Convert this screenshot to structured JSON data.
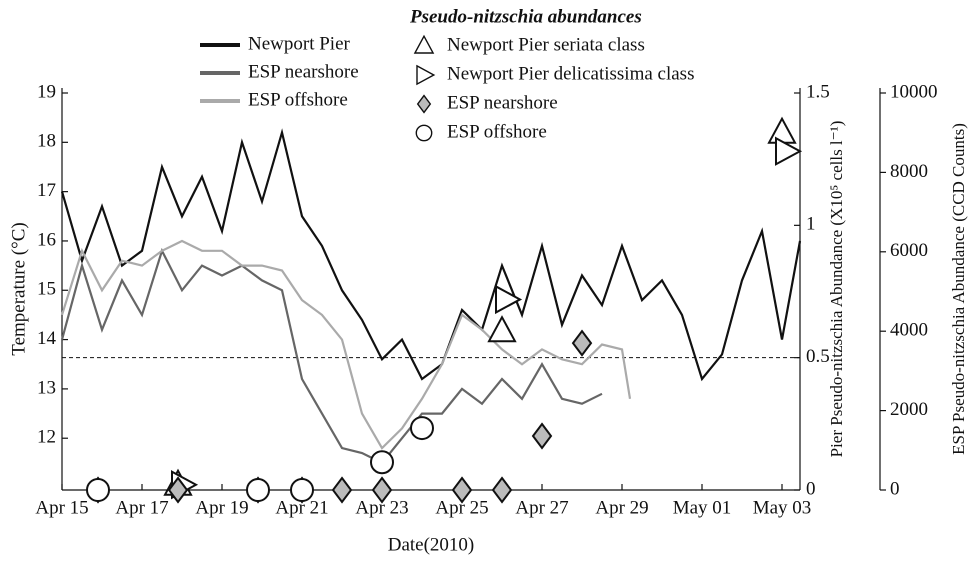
{
  "chart_data": {
    "type": "line",
    "xlabel": "Date(2010)",
    "ylabel": "Temperature (°C)",
    "y2label": "Pier Pseudo-nitzschia Abundance (X10⁵ cells l⁻¹)",
    "y3label": "ESP Pseudo-nitzschia Abundance (CCD Counts)",
    "legend_title": "Pseudo-nitzschia abundances",
    "xlim": [
      15,
      33.45
    ],
    "xticks": [
      {
        "value": 15,
        "label": "Apr 15"
      },
      {
        "value": 17,
        "label": "Apr 17"
      },
      {
        "value": 19,
        "label": "Apr 19"
      },
      {
        "value": 21,
        "label": "Apr 21"
      },
      {
        "value": 23,
        "label": "Apr 23"
      },
      {
        "value": 25,
        "label": "Apr 25"
      },
      {
        "value": 27,
        "label": "Apr 27"
      },
      {
        "value": 29,
        "label": "Apr 29"
      },
      {
        "value": 31,
        "label": "May 01"
      },
      {
        "value": 33,
        "label": "May 03"
      }
    ],
    "ylim": [
      10.95,
      19
    ],
    "yticks": [
      12,
      13,
      14,
      15,
      16,
      17,
      18,
      19
    ],
    "y2lim": [
      0,
      1.5
    ],
    "y2ticks": [
      0,
      0.5,
      1,
      1.5
    ],
    "y3lim": [
      0,
      10000
    ],
    "y3ticks": [
      0,
      2000,
      4000,
      6000,
      8000,
      10000
    ],
    "threshold": 0.5,
    "series": [
      {
        "name": "Newport Pier",
        "color": "#111111",
        "axis": "y",
        "x": [
          15,
          15.5,
          16,
          16.5,
          17,
          17.5,
          18,
          18.5,
          19,
          19.5,
          20,
          20.5,
          21,
          21.5,
          22,
          22.5,
          23,
          23.5,
          24,
          24.5,
          25,
          25.5,
          26,
          26.5,
          27,
          27.5,
          28,
          28.5,
          29,
          29.5,
          30,
          30.5,
          31,
          31.5,
          32,
          32.5,
          33,
          33.45
        ],
        "values": [
          17.0,
          15.6,
          16.7,
          15.5,
          15.8,
          17.5,
          16.5,
          17.3,
          16.2,
          18.0,
          16.8,
          18.2,
          16.5,
          15.9,
          15.0,
          14.4,
          13.6,
          14.0,
          13.2,
          13.5,
          14.6,
          14.2,
          15.5,
          14.5,
          15.9,
          14.3,
          15.3,
          14.7,
          15.9,
          14.8,
          15.2,
          14.5,
          13.2,
          13.7,
          15.2,
          16.2,
          14.0,
          16.0
        ]
      },
      {
        "name": "ESP nearshore",
        "color": "#666666",
        "axis": "y",
        "x": [
          15,
          15.5,
          16,
          16.5,
          17,
          17.5,
          18,
          18.5,
          19,
          19.5,
          20,
          20.5,
          21,
          21.5,
          22,
          22.5,
          23,
          23.5,
          24,
          24.5,
          25,
          25.5,
          26,
          26.5,
          27,
          27.5,
          28,
          28.5
        ],
        "values": [
          14.0,
          15.5,
          14.2,
          15.2,
          14.5,
          15.8,
          15.0,
          15.5,
          15.3,
          15.5,
          15.2,
          15.0,
          13.2,
          12.5,
          11.8,
          11.7,
          11.5,
          12.0,
          12.5,
          12.5,
          13.0,
          12.7,
          13.2,
          12.8,
          13.5,
          12.8,
          12.7,
          12.9
        ]
      },
      {
        "name": "ESP offshore",
        "color": "#aaaaaa",
        "axis": "y",
        "x": [
          15,
          15.5,
          16,
          16.5,
          17,
          17.5,
          18,
          18.5,
          19,
          19.5,
          20,
          20.5,
          21,
          21.5,
          22,
          22.5,
          23,
          23.5,
          24,
          24.5,
          25,
          25.5,
          26,
          26.5,
          27,
          27.5,
          28,
          28.5,
          29,
          29.2
        ],
        "values": [
          14.5,
          15.8,
          15.0,
          15.6,
          15.5,
          15.8,
          16.0,
          15.8,
          15.8,
          15.5,
          15.5,
          15.4,
          14.8,
          14.5,
          14.0,
          12.5,
          11.8,
          12.2,
          12.8,
          13.5,
          14.5,
          14.2,
          13.8,
          13.5,
          13.8,
          13.6,
          13.5,
          13.9,
          13.8,
          12.8
        ]
      },
      {
        "name": "Newport Pier seriata class",
        "color": "#ffffff",
        "axis": "y2",
        "marker": "triangle-up",
        "x": [
          17.9,
          26,
          33
        ],
        "values": [
          0.02,
          0.6,
          1.35
        ]
      },
      {
        "name": "Newport Pier delicatissima class",
        "color": "#ffffff",
        "axis": "y2",
        "marker": "triangle-right",
        "x": [
          18,
          26.1,
          33.1
        ],
        "values": [
          0.02,
          0.72,
          1.28
        ]
      },
      {
        "name": "ESP nearshore",
        "color": "#bbbbbb",
        "axis": "y3",
        "marker": "diamond",
        "x": [
          15.9,
          17.9,
          19.9,
          21,
          22,
          23,
          25,
          26,
          27,
          28
        ],
        "values": [
          0,
          0,
          0,
          0,
          0,
          0,
          0,
          0,
          1360,
          3700
        ]
      },
      {
        "name": "ESP offshore",
        "color": "#ffffff",
        "axis": "y3",
        "marker": "circle",
        "x": [
          15.9,
          19.9,
          21,
          23,
          24
        ],
        "values": [
          0,
          0,
          0,
          700,
          1560
        ]
      }
    ]
  }
}
